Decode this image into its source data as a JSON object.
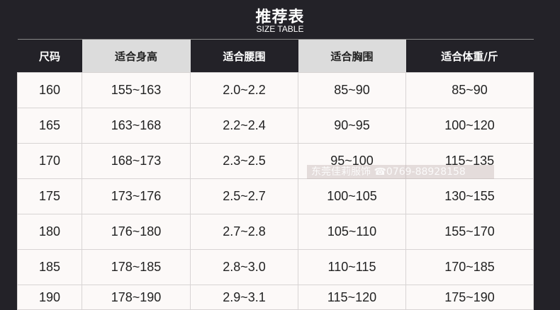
{
  "title": "推荐表",
  "subtitle": "SIZE TABLE",
  "headers": [
    "尺码",
    "适合身高",
    "适合腰围",
    "适合胸围",
    "适合体重/斤"
  ],
  "rows": [
    [
      "160",
      "155~163",
      "2.0~2.2",
      "85~90",
      "85~90"
    ],
    [
      "165",
      "163~168",
      "2.2~2.4",
      "90~95",
      "100~120"
    ],
    [
      "170",
      "168~173",
      "2.3~2.5",
      "95~100",
      "115~135"
    ],
    [
      "175",
      "173~176",
      "2.5~2.7",
      "100~105",
      "130~155"
    ],
    [
      "180",
      "176~180",
      "2.7~2.8",
      "105~110",
      "155~170"
    ],
    [
      "185",
      "178~185",
      "2.8~3.0",
      "110~115",
      "170~185"
    ],
    [
      "190",
      "178~190",
      "2.9~3.1",
      "115~120",
      "175~190"
    ]
  ],
  "watermark": "东莞佳莉服饰 ☎0769-88928158",
  "colors": {
    "background": "#232228",
    "header_light": "#dcdcdc",
    "cell": "#fcf9f8"
  }
}
